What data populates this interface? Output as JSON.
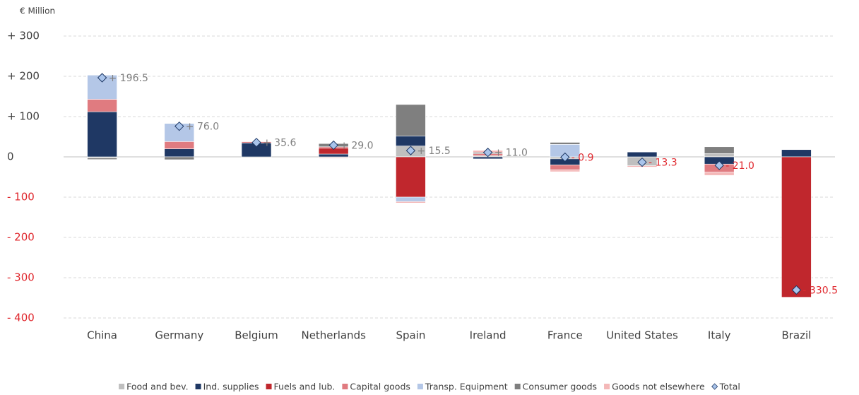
{
  "chart_data": {
    "type": "bar",
    "stacked": true,
    "y_axis_label": "€ Million",
    "categories": [
      "China",
      "Germany",
      "Belgium",
      "Netherlands",
      "Spain",
      "Ireland",
      "France",
      "United States",
      "Italy",
      "Brazil"
    ],
    "ylim": [
      -400,
      300
    ],
    "yticks": [
      {
        "value": 300,
        "label": "+ 300"
      },
      {
        "value": 200,
        "label": "+ 200"
      },
      {
        "value": 100,
        "label": "+ 100"
      },
      0,
      {
        "value": -100,
        "label": "- 100"
      },
      {
        "value": -200,
        "label": "- 200"
      },
      {
        "value": -300,
        "label": "- 300"
      },
      {
        "value": -400,
        "label": "- 400"
      }
    ],
    "grid": true,
    "legend": "bottom",
    "series": [
      {
        "name": "Food and bev.",
        "color": "#bfbfbf",
        "values": [
          -3,
          null,
          -2,
          -2,
          27,
          3,
          -5,
          -22,
          8,
          null
        ]
      },
      {
        "name": "Ind. supplies",
        "color": "#1f3864",
        "values": [
          112,
          20,
          34.6,
          7,
          25,
          -5,
          -15,
          12,
          -18,
          18
        ]
      },
      {
        "name": "Fuels and lub.",
        "color": "#c0272d",
        "values": [
          null,
          null,
          null,
          15,
          -100,
          null,
          null,
          null,
          null,
          -348.5
        ]
      },
      {
        "name": "Capital goods",
        "color": "#e07b80",
        "values": [
          31,
          18,
          3,
          3,
          null,
          5,
          -12,
          null,
          -20,
          null
        ]
      },
      {
        "name": "Transp. Equipment",
        "color": "#b4c7e7",
        "values": [
          60,
          45,
          null,
          null,
          -11,
          null,
          31,
          null,
          null,
          null
        ]
      },
      {
        "name": "Consumer goods",
        "color": "#7f7f7f",
        "values": [
          -3.5,
          -7,
          null,
          8,
          78,
          3,
          5,
          null,
          17,
          null
        ]
      },
      {
        "name": "Goods not elsewhere",
        "color": "#f4b8b8",
        "values": [
          null,
          null,
          null,
          -2,
          -3.5,
          5,
          -4.9,
          -3.3,
          -8,
          null
        ]
      },
      {
        "name": "Total",
        "color": "#a9c4eb",
        "marker": "diamond",
        "values": [
          196.5,
          76.0,
          35.6,
          29.0,
          15.5,
          11.0,
          -0.9,
          -13.3,
          -21.0,
          -330.5
        ],
        "value_labels": [
          "+ 196.5",
          "+ 76.0",
          "+ 35.6",
          "+ 29.0",
          "+ 15.5",
          "+ 11.0",
          "- 0.9",
          "- 13.3",
          "- 21.0",
          "- 330.5"
        ]
      }
    ]
  }
}
